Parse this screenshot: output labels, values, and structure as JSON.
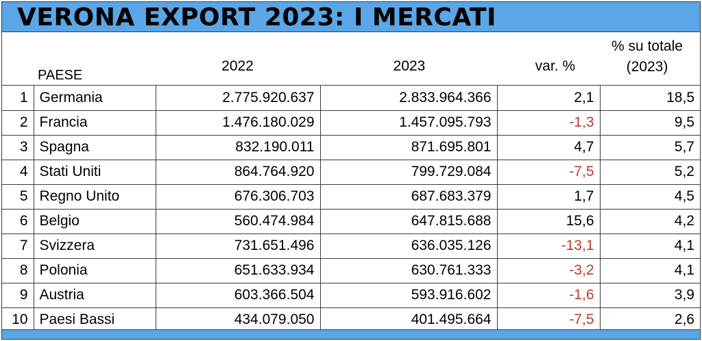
{
  "title": "VERONA EXPORT 2023: I MERCATI",
  "headers": {
    "country": "PAESE",
    "y2022": "2022",
    "y2023": "2023",
    "variation": "var. %",
    "share_line1": "% su totale",
    "share_line2": "(2023)"
  },
  "colors": {
    "title_bar": "#5aa6e6",
    "negative": "#c0392b"
  },
  "rows": [
    {
      "rank": "1",
      "country": "Germania",
      "v2022": "2.775.920.637",
      "v2023": "2.833.964.366",
      "var": "2,1",
      "share": "18,5",
      "negative": false
    },
    {
      "rank": "2",
      "country": "Francia",
      "v2022": "1.476.180.029",
      "v2023": "1.457.095.793",
      "var": "-1,3",
      "share": "9,5",
      "negative": true
    },
    {
      "rank": "3",
      "country": "Spagna",
      "v2022": "832.190.011",
      "v2023": "871.695.801",
      "var": "4,7",
      "share": "5,7",
      "negative": false
    },
    {
      "rank": "4",
      "country": "Stati Uniti",
      "v2022": "864.764.920",
      "v2023": "799.729.084",
      "var": "-7,5",
      "share": "5,2",
      "negative": true
    },
    {
      "rank": "5",
      "country": "Regno Unito",
      "v2022": "676.306.703",
      "v2023": "687.683.379",
      "var": "1,7",
      "share": "4,5",
      "negative": false
    },
    {
      "rank": "6",
      "country": "Belgio",
      "v2022": "560.474.984",
      "v2023": "647.815.688",
      "var": "15,6",
      "share": "4,2",
      "negative": false
    },
    {
      "rank": "7",
      "country": "Svizzera",
      "v2022": "731.651.496",
      "v2023": "636.035.126",
      "var": "-13,1",
      "share": "4,1",
      "negative": true
    },
    {
      "rank": "8",
      "country": "Polonia",
      "v2022": "651.633.934",
      "v2023": "630.761.333",
      "var": "-3,2",
      "share": "4,1",
      "negative": true
    },
    {
      "rank": "9",
      "country": "Austria",
      "v2022": "603.366.504",
      "v2023": "593.916.602",
      "var": "-1,6",
      "share": "3,9",
      "negative": true
    },
    {
      "rank": "10",
      "country": "Paesi Bassi",
      "v2022": "434.079.050",
      "v2023": "401.495.664",
      "var": "-7,5",
      "share": "2,6",
      "negative": true
    }
  ]
}
